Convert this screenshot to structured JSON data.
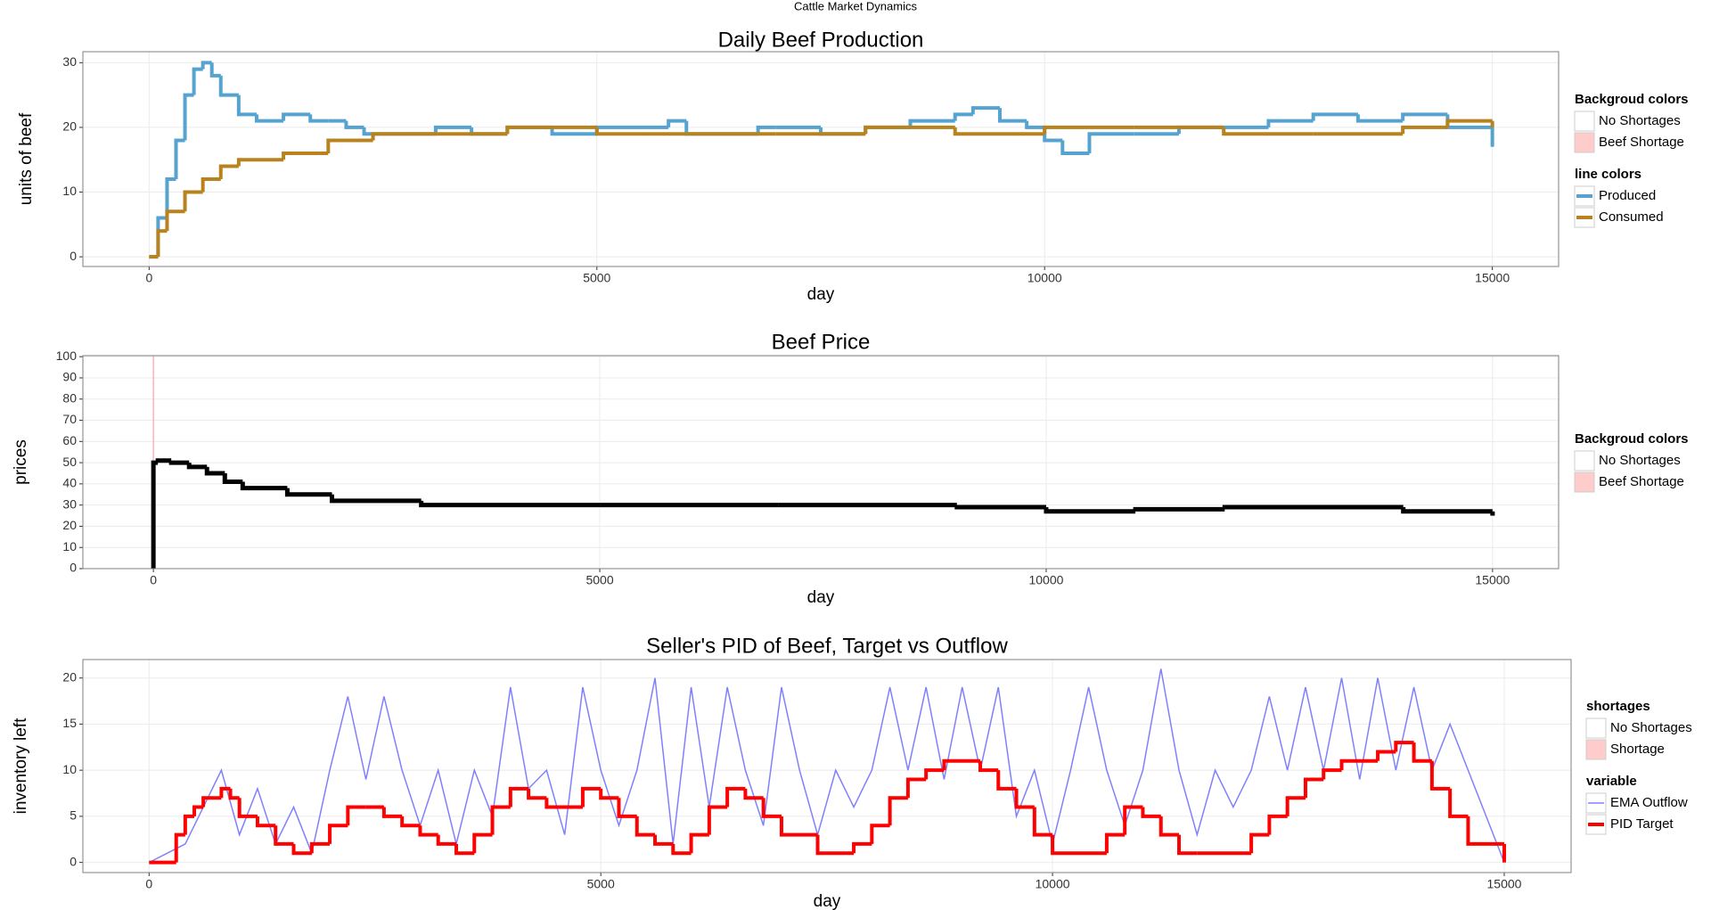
{
  "title": "Cattle Market Dynamics",
  "chart_data": [
    {
      "type": "line",
      "title": "Daily Beef Production",
      "xlabel": "day",
      "ylabel": "units of beef",
      "xlim": [
        -740,
        15740
      ],
      "ylim": [
        -1.5,
        31.7
      ],
      "xticks": [
        0,
        5000,
        10000,
        15000
      ],
      "yticks": [
        0,
        10,
        20,
        30
      ],
      "grid": true,
      "background_legend": {
        "title": "Backgroud colors",
        "labels": [
          "No Shortages",
          "Beef Shortage"
        ],
        "colors": [
          "#ffffff",
          "#ffcccc"
        ]
      },
      "legend_title": "line colors",
      "series": [
        {
          "name": "Produced",
          "color": "#56a3cf",
          "step": true,
          "line_width": 4,
          "x": [
            0,
            100,
            200,
            300,
            400,
            500,
            600,
            700,
            800,
            1000,
            1200,
            1500,
            1800,
            2000,
            2200,
            2400,
            2800,
            3200,
            3600,
            4000,
            4500,
            5000,
            5500,
            5800,
            6000,
            6500,
            6800,
            7000,
            7500,
            8000,
            8500,
            9000,
            9200,
            9500,
            9800,
            10000,
            10200,
            10500,
            11000,
            11500,
            12000,
            12500,
            13000,
            13500,
            14000,
            14500,
            15000
          ],
          "values": [
            0,
            6,
            12,
            18,
            25,
            29,
            30,
            28,
            25,
            22,
            21,
            22,
            21,
            21,
            20,
            19,
            19,
            20,
            19,
            20,
            19,
            20,
            20,
            21,
            19,
            19,
            20,
            20,
            19,
            20,
            21,
            22,
            23,
            21,
            20,
            18,
            16,
            19,
            19,
            20,
            20,
            21,
            22,
            21,
            22,
            20,
            17
          ]
        },
        {
          "name": "Consumed",
          "color": "#b8821e",
          "step": true,
          "line_width": 4,
          "x": [
            0,
            100,
            200,
            400,
            600,
            800,
            1000,
            1500,
            2000,
            2500,
            3000,
            4000,
            5000,
            6000,
            7000,
            8000,
            9000,
            10000,
            11000,
            12000,
            13000,
            14000,
            14500,
            15000
          ],
          "values": [
            0,
            4,
            7,
            10,
            12,
            14,
            15,
            16,
            18,
            19,
            19,
            20,
            19,
            19,
            19,
            20,
            19,
            20,
            20,
            19,
            19,
            20,
            21,
            20
          ]
        }
      ]
    },
    {
      "type": "line",
      "title": "Beef Price",
      "xlabel": "day",
      "ylabel": "prices",
      "xlim": [
        -790,
        15740
      ],
      "ylim": [
        0,
        100.5
      ],
      "xticks": [
        0,
        5000,
        10000,
        15000
      ],
      "yticks": [
        0,
        10,
        20,
        30,
        40,
        50,
        60,
        70,
        80,
        90,
        100
      ],
      "grid": true,
      "background_legend": {
        "title": "Backgroud colors",
        "labels": [
          "No Shortages",
          "Beef Shortage"
        ],
        "colors": [
          "#ffffff",
          "#ffcccc"
        ]
      },
      "shortage_x": [
        0
      ],
      "series": [
        {
          "color": "#000000",
          "step": true,
          "line_width": 5,
          "x": [
            0,
            0,
            50,
            200,
            400,
            600,
            800,
            1000,
            1500,
            2000,
            3000,
            5000,
            7000,
            9000,
            10000,
            11000,
            12000,
            13000,
            14000,
            15000
          ],
          "values": [
            0,
            50,
            51,
            50,
            48,
            45,
            41,
            38,
            35,
            32,
            30,
            30,
            30,
            29,
            27,
            28,
            29,
            29,
            27,
            25
          ]
        }
      ]
    },
    {
      "type": "line",
      "title": "Seller's PID of Beef, Target vs Outflow",
      "xlabel": "day",
      "ylabel": "inventory left",
      "xlim": [
        -733,
        15740
      ],
      "ylim": [
        -1.1,
        22
      ],
      "xticks": [
        0,
        5000,
        10000,
        15000
      ],
      "yticks": [
        0,
        5,
        10,
        15,
        20
      ],
      "grid": true,
      "background_legend": {
        "title": "shortages",
        "labels": [
          "No Shortages",
          "Shortage"
        ],
        "colors": [
          "#ffffff",
          "#ffcccc"
        ]
      },
      "legend_title": "variable",
      "series": [
        {
          "name": "EMA Outflow",
          "color": "#8080ff",
          "step": false,
          "line_width": 1.5,
          "x": [
            0,
            200,
            400,
            600,
            800,
            1000,
            1200,
            1400,
            1600,
            1800,
            2000,
            2200,
            2400,
            2600,
            2800,
            3000,
            3200,
            3400,
            3600,
            3800,
            4000,
            4200,
            4400,
            4600,
            4800,
            5000,
            5200,
            5400,
            5600,
            5800,
            6000,
            6200,
            6400,
            6600,
            6800,
            7000,
            7200,
            7400,
            7600,
            7800,
            8000,
            8200,
            8400,
            8600,
            8800,
            9000,
            9200,
            9400,
            9600,
            9800,
            10000,
            10200,
            10400,
            10600,
            10800,
            11000,
            11200,
            11400,
            11600,
            11800,
            12000,
            12200,
            12400,
            12600,
            12800,
            13000,
            13200,
            13400,
            13600,
            13800,
            14000,
            14200,
            14400,
            14600,
            14800,
            15000
          ],
          "values": [
            0,
            1,
            2,
            6,
            10,
            3,
            8,
            2,
            6,
            1,
            10,
            18,
            9,
            18,
            10,
            4,
            10,
            2,
            10,
            5,
            19,
            8,
            10,
            3,
            19,
            10,
            4,
            10,
            20,
            2,
            19,
            6,
            19,
            10,
            4,
            19,
            10,
            3,
            10,
            6,
            10,
            19,
            10,
            19,
            9,
            19,
            10,
            19,
            5,
            10,
            2,
            10,
            19,
            10,
            4,
            10,
            21,
            10,
            3,
            10,
            6,
            10,
            18,
            10,
            19,
            10,
            20,
            9,
            20,
            10,
            19,
            10,
            15,
            10,
            5,
            0
          ]
        },
        {
          "name": "PID Target",
          "color": "#ff0000",
          "step": true,
          "line_width": 4,
          "x": [
            0,
            300,
            400,
            500,
            600,
            800,
            900,
            1000,
            1200,
            1400,
            1600,
            1800,
            2000,
            2200,
            2400,
            2600,
            2800,
            3000,
            3200,
            3400,
            3600,
            3800,
            4000,
            4200,
            4400,
            4800,
            5000,
            5200,
            5400,
            5600,
            5800,
            6000,
            6200,
            6400,
            6600,
            6800,
            7000,
            7400,
            7800,
            8000,
            8200,
            8400,
            8600,
            8800,
            9200,
            9400,
            9600,
            9800,
            10000,
            10600,
            10800,
            11000,
            11200,
            11400,
            11600,
            12200,
            12400,
            12600,
            12800,
            13000,
            13200,
            13600,
            13800,
            14000,
            14200,
            14400,
            14600,
            15000
          ],
          "values": [
            0,
            3,
            5,
            6,
            7,
            8,
            7,
            5,
            4,
            2,
            1,
            2,
            4,
            6,
            6,
            5,
            4,
            3,
            2,
            1,
            3,
            6,
            8,
            7,
            6,
            8,
            7,
            5,
            3,
            2,
            1,
            3,
            6,
            8,
            7,
            5,
            3,
            1,
            2,
            4,
            7,
            9,
            10,
            11,
            10,
            8,
            6,
            3,
            1,
            3,
            6,
            5,
            3,
            1,
            1,
            3,
            5,
            7,
            9,
            10,
            11,
            12,
            13,
            11,
            8,
            5,
            2,
            0
          ]
        }
      ]
    }
  ]
}
